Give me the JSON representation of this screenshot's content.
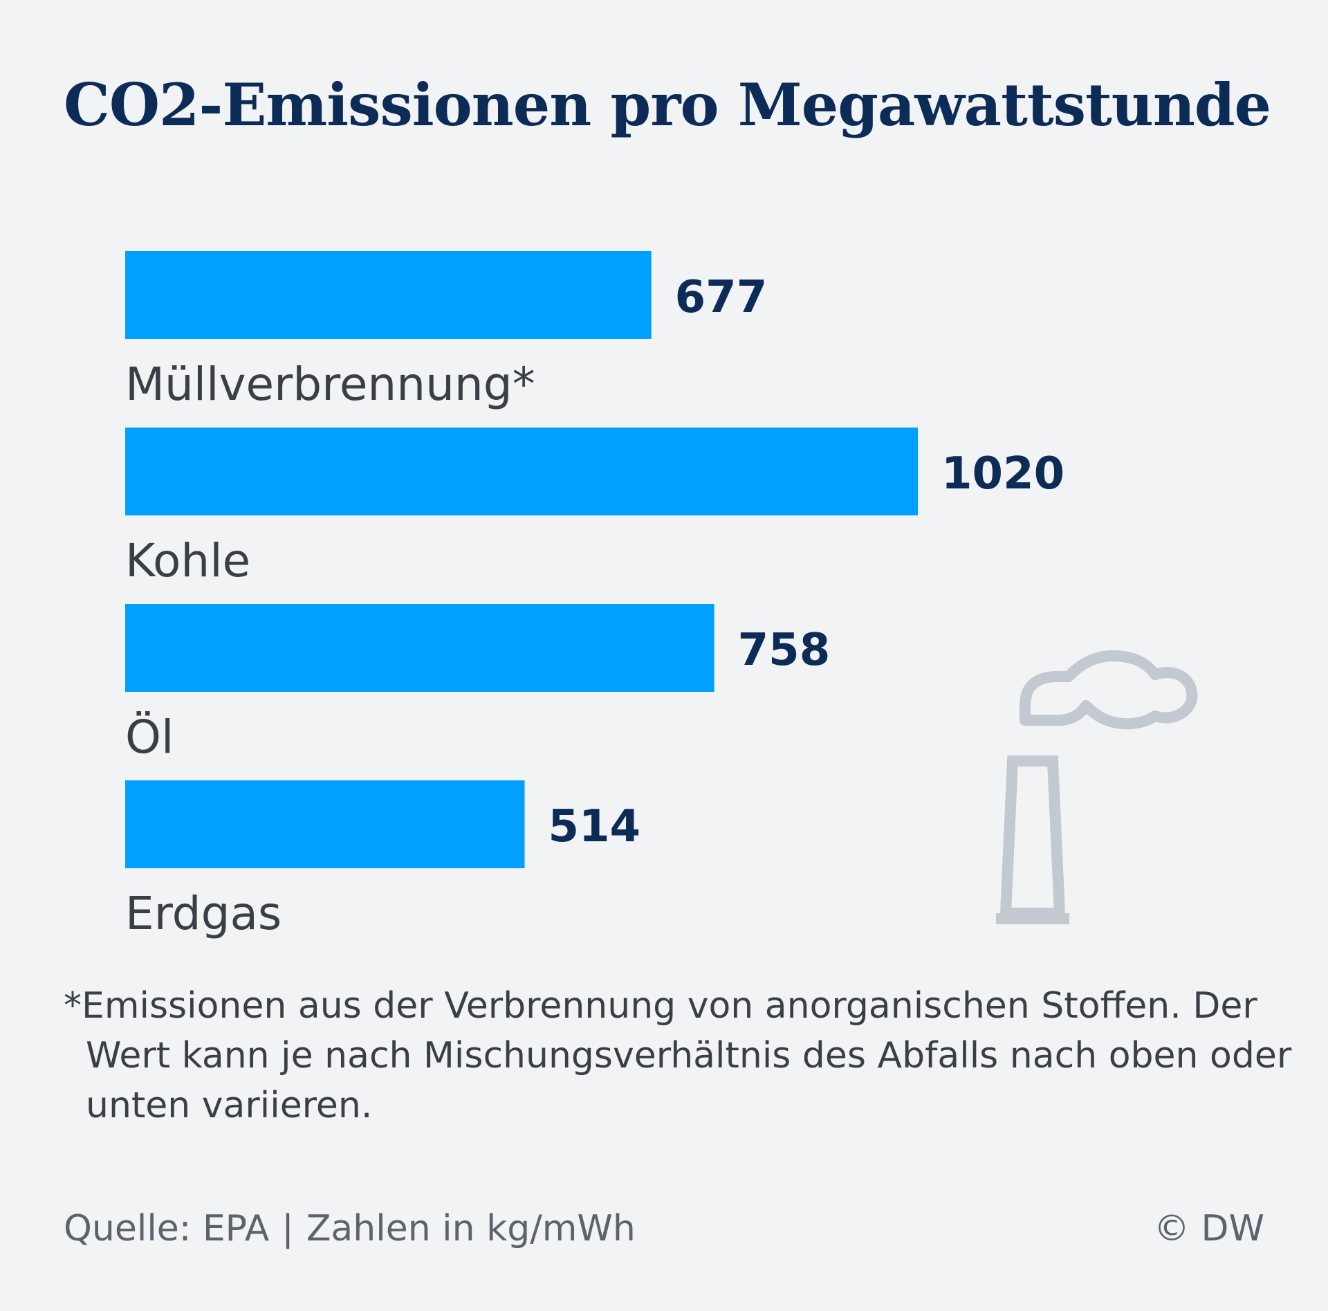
{
  "title": "CO2-Emissionen pro Megawattstunde",
  "chart_data": {
    "type": "bar",
    "orientation": "horizontal",
    "categories": [
      "Müllverbrennung*",
      "Kohle",
      "Öl",
      "Erdgas"
    ],
    "values": [
      677,
      1020,
      758,
      514
    ],
    "value_labels": [
      "677",
      "1020",
      "758",
      "514"
    ],
    "bar_color": "#00a0ff",
    "grid": false,
    "legend": "none"
  },
  "footnote": "*Emissionen aus der Verbrennung von anorganischen Stoffen. Der Wert kann je nach Mischungsverhältnis des Abfalls nach oben oder unten variieren.",
  "footer": {
    "source": "Quelle: EPA",
    "separator": "|",
    "units": "Zahlen in kg/mWh",
    "credit": "© DW"
  },
  "icon": "factory-chimney-smoke-icon",
  "colors": {
    "background": "#f1f3f5",
    "title": "#0c2b57",
    "bar": "#00a0ff",
    "icon": "#c2c9d0"
  }
}
